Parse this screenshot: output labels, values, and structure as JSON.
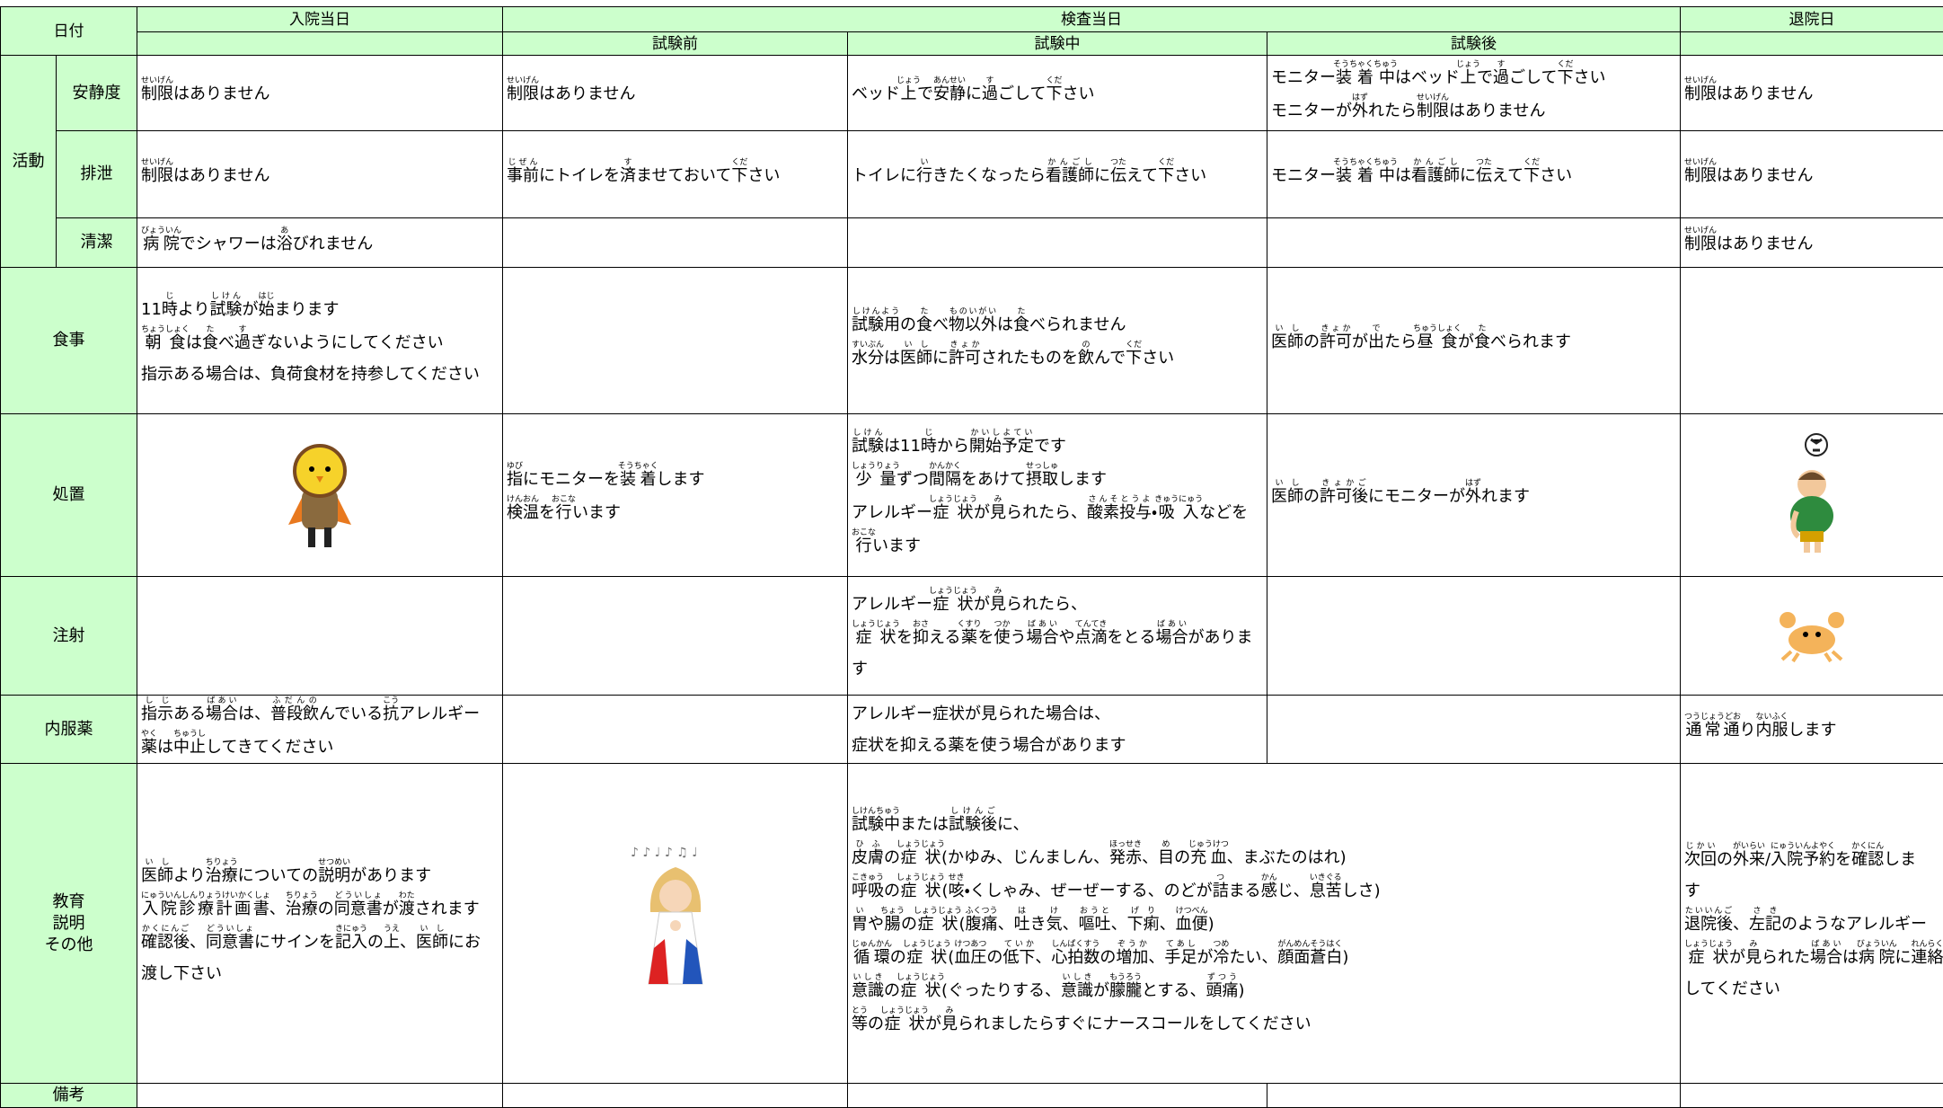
{
  "header": {
    "date": "日付",
    "day1": "入院当日",
    "test_day": "検査当日",
    "before": "試験前",
    "during": "試験中",
    "after": "試験後",
    "discharge": "退院日"
  },
  "activity": {
    "label": "活動",
    "rows": [
      {
        "label": "安静度",
        "cells": {
          "day1": {
            "lines": [
              [
                [
                  "制限",
                  "せいげん"
                ],
                "はありません"
              ]
            ]
          },
          "before": {
            "lines": [
              [
                [
                  "制限",
                  "せいげん"
                ],
                "はありません"
              ]
            ]
          },
          "during": {
            "lines": [
              [
                "ベッド",
                [
                  "上",
                  "じょう"
                ],
                "で",
                [
                  "安静",
                  "あんせい"
                ],
                "に",
                [
                  "過",
                  "す"
                ],
                "ごして",
                [
                  "下",
                  "くだ"
                ],
                "さい"
              ]
            ]
          },
          "after": {
            "lines": [
              [
                "モニター",
                [
                  "装着中",
                  "そうちゃくちゅう"
                ],
                "はベッド",
                [
                  "上",
                  "じょう"
                ],
                "で",
                [
                  "過",
                  "す"
                ],
                "ごして",
                [
                  "下",
                  "くだ"
                ],
                "さい"
              ],
              [
                "モニターが",
                [
                  "外",
                  "はず"
                ],
                "れたら",
                [
                  "制限",
                  "せいげん"
                ],
                "はありません"
              ]
            ]
          },
          "discharge": {
            "lines": [
              [
                [
                  "制限",
                  "せいげん"
                ],
                "はありません"
              ]
            ]
          }
        }
      },
      {
        "label": "排泄",
        "cells": {
          "day1": {
            "lines": [
              [
                [
                  "制限",
                  "せいげん"
                ],
                "はありません"
              ]
            ]
          },
          "before": {
            "lines": [
              [
                [
                  "事前",
                  "じぜん"
                ],
                "にトイレを",
                [
                  "済",
                  "す"
                ],
                "ませておいて",
                [
                  "下",
                  "くだ"
                ],
                "さい"
              ]
            ]
          },
          "during": {
            "lines": [
              [
                "トイレに",
                [
                  "行",
                  "い"
                ],
                "きたくなったら",
                [
                  "看護師",
                  "かんごし"
                ],
                "に",
                [
                  "伝",
                  "つた"
                ],
                "えて",
                [
                  "下",
                  "くだ"
                ],
                "さい"
              ]
            ]
          },
          "after": {
            "lines": [
              [
                "モニター",
                [
                  "装着中",
                  "そうちゃくちゅう"
                ],
                "は",
                [
                  "看護師",
                  "かんごし"
                ],
                "に",
                [
                  "伝",
                  "つた"
                ],
                "えて",
                [
                  "下",
                  "くだ"
                ],
                "さい"
              ]
            ]
          },
          "discharge": {
            "lines": [
              [
                [
                  "制限",
                  "せいげん"
                ],
                "はありません"
              ]
            ]
          }
        }
      },
      {
        "label": "清潔",
        "cells": {
          "day1": {
            "lines": [
              [
                [
                  "病院",
                  "びょういん"
                ],
                "でシャワーは",
                [
                  "浴",
                  "あ"
                ],
                "びれません"
              ]
            ]
          },
          "discharge": {
            "lines": [
              [
                [
                  "制限",
                  "せいげん"
                ],
                "はありません"
              ]
            ]
          }
        }
      }
    ]
  },
  "rows": [
    {
      "label": "食事",
      "cells": {
        "day1": {
          "lines": [
            [
              "11",
              [
                "時",
                "じ"
              ],
              "より",
              [
                "試験",
                "しけん"
              ],
              "が",
              [
                "始",
                "はじ"
              ],
              "まります"
            ],
            [
              [
                "朝食",
                "ちょうしょく"
              ],
              "は",
              [
                "食",
                "た"
              ],
              "べ",
              [
                "過",
                "す"
              ],
              "ぎないようにしてください"
            ],
            [
              "指示ある場合は、負荷食材を持参してください"
            ]
          ]
        },
        "during": {
          "lines": [
            [
              [
                "試験用",
                "しけんよう"
              ],
              "の",
              [
                "食",
                "た"
              ],
              "べ",
              [
                "物以外",
                "ものいがい"
              ],
              "は",
              [
                "食",
                "た"
              ],
              "べられません"
            ],
            [
              [
                "水分",
                "すいぶん"
              ],
              "は",
              [
                "医師",
                "いし"
              ],
              "に",
              [
                "許可",
                "きょか"
              ],
              "されたものを",
              [
                "飲",
                "の"
              ],
              "んで",
              [
                "下",
                "くだ"
              ],
              "さい"
            ]
          ]
        },
        "after": {
          "lines": [
            [
              [
                "医師",
                "いし"
              ],
              "の",
              [
                "許可",
                "きょか"
              ],
              "が",
              [
                "出",
                "で"
              ],
              "たら",
              [
                "昼食",
                "ちゅうしょく"
              ],
              "が",
              [
                "食",
                "た"
              ],
              "べられます"
            ]
          ]
        }
      }
    },
    {
      "label": "処置",
      "cells": {
        "before": {
          "lines": [
            [
              [
                "指",
                "ゆび"
              ],
              "にモニターを",
              [
                "装着",
                "そうちゃく"
              ],
              "します"
            ],
            [
              [
                "検温",
                "けんおん"
              ],
              "を",
              [
                "行",
                "おこな"
              ],
              "います"
            ]
          ]
        },
        "during": {
          "lines": [
            [
              [
                "試験",
                "しけん"
              ],
              "は11",
              [
                "時",
                "じ"
              ],
              "から",
              [
                "開始予定",
                "かいしよてい"
              ],
              "です"
            ],
            [
              [
                "少量",
                "しょうりょう"
              ],
              "ずつ",
              [
                "間隔",
                "かんかく"
              ],
              "をあけて",
              [
                "摂取",
                "せっしゅ"
              ],
              "します"
            ],
            [
              "アレルギー",
              [
                "症状",
                "しょうじょう"
              ],
              "が",
              [
                "見",
                "み"
              ],
              "られたら、",
              [
                "酸素投与",
                "さんそとうよ"
              ],
              "・",
              [
                "吸入",
                "きゅうにゅう"
              ],
              "などを"
            ],
            [
              [
                "行",
                "おこな"
              ],
              "います"
            ]
          ]
        },
        "after": {
          "lines": [
            [
              [
                "医師",
                "いし"
              ],
              "の",
              [
                "許可後",
                "きょかご"
              ],
              "にモニターが",
              [
                "外",
                "はず"
              ],
              "れます"
            ]
          ]
        }
      }
    },
    {
      "label": "注射",
      "cells": {
        "during": {
          "lines": [
            [
              "アレルギー",
              [
                "症状",
                "しょうじょう"
              ],
              "が",
              [
                "見",
                "み"
              ],
              "られたら、"
            ],
            [
              [
                "症状",
                "しょうじょう"
              ],
              "を",
              [
                "抑",
                "おさ"
              ],
              "える",
              [
                "薬",
                "くすり"
              ],
              "を",
              [
                "使",
                "つか"
              ],
              "う",
              [
                "場合",
                "ばあい"
              ],
              "や",
              [
                "点滴",
                "てんてき"
              ],
              "をとる",
              [
                "場合",
                "ばあい"
              ],
              "がありま"
            ],
            [
              "す"
            ]
          ]
        }
      }
    },
    {
      "label": "内服薬",
      "cells": {
        "day1": {
          "lines": [
            [
              [
                "指示",
                "しじ"
              ],
              "ある",
              [
                "場合",
                "ばあい"
              ],
              "は、",
              [
                "普段飲",
                "ふだんの"
              ],
              "んでいる",
              [
                "抗",
                "こう"
              ],
              "アレルギー"
            ],
            [
              [
                "薬",
                "やく"
              ],
              "は",
              [
                "中止",
                "ちゅうし"
              ],
              "してきてください"
            ]
          ]
        },
        "during": {
          "lines": [
            [
              "アレルギー症状が見られた場合は、"
            ],
            [
              "症状を抑える薬を使う場合があります"
            ]
          ]
        },
        "discharge": {
          "lines": [
            [
              [
                "通常通",
                "つうじょうどお"
              ],
              "り",
              [
                "内服",
                "ないふく"
              ],
              "します"
            ]
          ]
        }
      }
    },
    {
      "label": "教育\n説明\nその他",
      "cells": {
        "day1": {
          "lines": [
            [
              [
                "医師",
                "いし"
              ],
              "より",
              [
                "治療",
                "ちりょう"
              ],
              "についての",
              [
                "説明",
                "せつめい"
              ],
              "があります"
            ],
            [
              [
                "入院診療計画書",
                "にゅういんしんりょうけいかくしょ"
              ],
              "、",
              [
                "治療",
                "ちりょう"
              ],
              "の",
              [
                "同意書",
                "どういしょ"
              ],
              "が",
              [
                "渡",
                "わた"
              ],
              "されます"
            ],
            [
              [
                "確認後",
                "かくにんご"
              ],
              "、",
              [
                "同意書",
                "どういしょ"
              ],
              "にサインを",
              [
                "記入",
                "きにゅう"
              ],
              "の",
              [
                "上",
                "うえ"
              ],
              "、",
              [
                "医師",
                "いし"
              ],
              "にお"
            ],
            [
              "渡し下さい"
            ]
          ]
        },
        "during_after": {
          "lines": [
            [
              [
                "試験中",
                "しけんちゅう"
              ],
              "または",
              [
                "試験後",
                "しけんご"
              ],
              "に、"
            ],
            [
              [
                "皮膚",
                "ひふ"
              ],
              "の",
              [
                "症状",
                "しょうじょう"
              ],
              "(かゆみ、じんましん、",
              [
                "発赤",
                "ほっせき"
              ],
              "、",
              [
                "目",
                "め"
              ],
              "の",
              [
                "充血",
                "じゅうけつ"
              ],
              "、まぶたのはれ)"
            ],
            [
              [
                "呼吸",
                "こきゅう"
              ],
              "の",
              [
                "症状",
                "しょうじょう"
              ],
              "(",
              [
                "咳",
                "せき"
              ],
              "・くしゃみ、ぜーぜーする、のどが",
              [
                "詰",
                "つ"
              ],
              "まる",
              [
                "感",
                "かん"
              ],
              "じ、",
              [
                "息苦",
                "いきぐる"
              ],
              "しさ)"
            ],
            [
              [
                "胃",
                "い"
              ],
              "や",
              [
                "腸",
                "ちょう"
              ],
              "の",
              [
                "症状",
                "しょうじょう"
              ],
              "(",
              [
                "腹痛",
                "ふくつう"
              ],
              "、",
              [
                "吐",
                "は"
              ],
              "き",
              [
                "気",
                "け"
              ],
              "、",
              [
                "嘔吐",
                "おうと"
              ],
              "、",
              [
                "下痢",
                "げり"
              ],
              "、",
              [
                "血便",
                "けつべん"
              ],
              ")"
            ],
            [
              [
                "循環",
                "じゅんかん"
              ],
              "の",
              [
                "症状",
                "しょうじょう"
              ],
              "(",
              [
                "血圧",
                "けつあつ"
              ],
              "の",
              [
                "低下",
                "ていか"
              ],
              "、",
              [
                "心拍数",
                "しんぱくすう"
              ],
              "の",
              [
                "増加",
                "ぞうか"
              ],
              "、",
              [
                "手足",
                "てあし"
              ],
              "が",
              [
                "冷",
                "つめ"
              ],
              "たい、",
              [
                "顔面蒼白",
                "がんめんそうはく"
              ],
              ")"
            ],
            [
              [
                "意識",
                "いしき"
              ],
              "の",
              [
                "症状",
                "しょうじょう"
              ],
              "(ぐったりする、",
              [
                "意識",
                "いしき"
              ],
              "が",
              [
                "朦朧",
                "もうろう"
              ],
              "とする、",
              [
                "頭痛",
                "ずつう"
              ],
              ")"
            ],
            [
              [
                "等",
                "とう"
              ],
              "の",
              [
                "症状",
                "しょうじょう"
              ],
              "が",
              [
                "見",
                "み"
              ],
              "られましたらすぐにナースコールをしてください"
            ]
          ]
        },
        "discharge": {
          "lines": [
            [
              [
                "次回",
                "じかい"
              ],
              "の",
              [
                "外来",
                "がいらい"
              ],
              "/",
              [
                "入院予約",
                "にゅういんよやく"
              ],
              "を",
              [
                "確認",
                "かくにん"
              ],
              "しま"
            ],
            [
              "す"
            ],
            [
              [
                "退院後",
                "たいいんご"
              ],
              "、",
              [
                "左記",
                "さき"
              ],
              "のようなアレルギー"
            ],
            [
              [
                "症状",
                "しょうじょう"
              ],
              "が",
              [
                "見",
                "み"
              ],
              "られた",
              [
                "場合",
                "ばあい"
              ],
              "は",
              [
                "病院",
                "びょういん"
              ],
              "に",
              [
                "連絡",
                "れんらく"
              ]
            ],
            [
              "してください"
            ]
          ]
        }
      }
    },
    {
      "label": "備考",
      "cells": {}
    }
  ]
}
